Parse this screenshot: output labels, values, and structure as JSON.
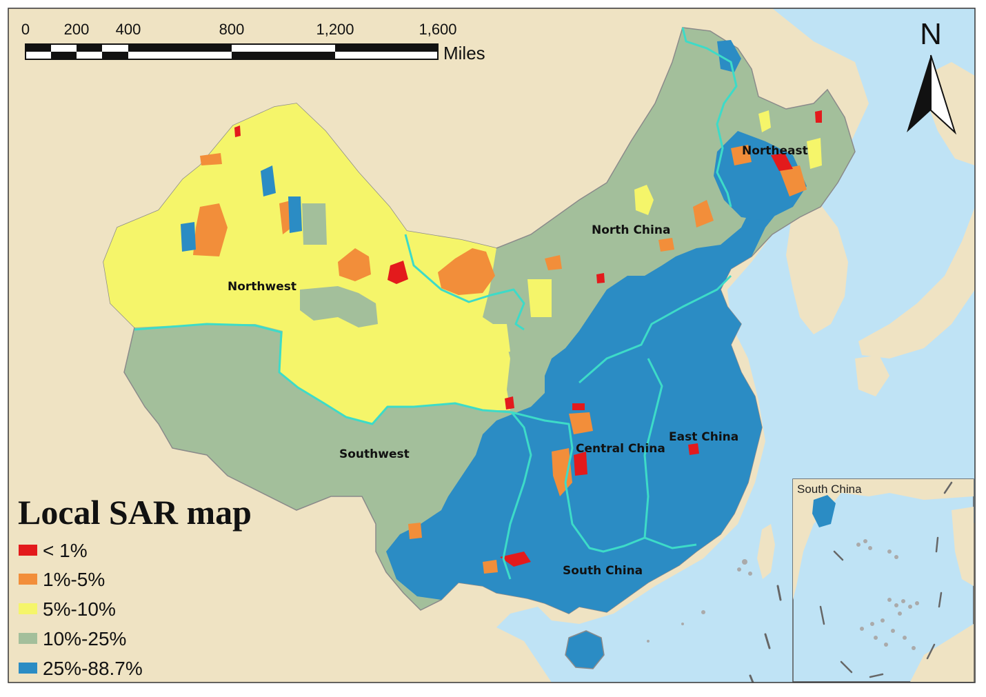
{
  "scale_bar": {
    "ticks": [
      "0",
      "200",
      "400",
      "800",
      "1,200",
      "1,600"
    ],
    "tick_values": [
      0,
      200,
      400,
      800,
      1200,
      1600
    ],
    "unit": "Miles"
  },
  "north_arrow": {
    "label": "N",
    "icon": "north-arrow-icon"
  },
  "regions": [
    {
      "id": "northwest",
      "label": "Northwest"
    },
    {
      "id": "north-china",
      "label": "North China"
    },
    {
      "id": "northeast",
      "label": "Northeast"
    },
    {
      "id": "southwest",
      "label": "Southwest"
    },
    {
      "id": "central-china",
      "label": "Central China"
    },
    {
      "id": "east-china",
      "label": "East China"
    },
    {
      "id": "south-china",
      "label": "South China"
    }
  ],
  "inset": {
    "label": "South China"
  },
  "legend": {
    "title": "Local SAR map",
    "items": [
      {
        "label": "< 1%",
        "color": "#e31a1c"
      },
      {
        "label": "1%-5%",
        "color": "#f28e3a"
      },
      {
        "label": "5%-10%",
        "color": "#f5f56a"
      },
      {
        "label": "10%-25%",
        "color": "#a3bf9b"
      },
      {
        "label": "25%-88.7%",
        "color": "#2b8cc4"
      }
    ]
  },
  "colors": {
    "sea": "#bfe3f5",
    "land": "#efe3c3",
    "boundary": "#3ddbc8"
  }
}
